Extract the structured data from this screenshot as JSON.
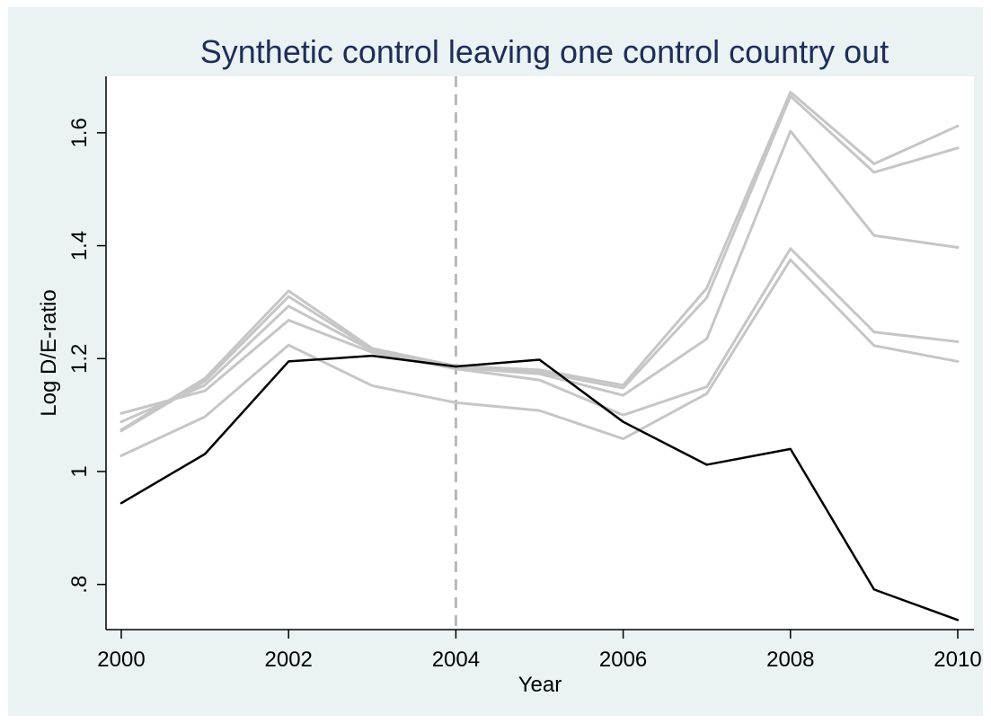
{
  "chart_data": {
    "type": "line",
    "title": "Synthetic control leaving one control country out",
    "xlabel": "Year",
    "ylabel": "Log D/E-ratio",
    "x": [
      2000,
      2001,
      2002,
      2003,
      2004,
      2005,
      2006,
      2007,
      2008,
      2009,
      2010
    ],
    "xticks": [
      2000,
      2002,
      2004,
      2006,
      2008,
      2010
    ],
    "xtick_labels": [
      "2000",
      "2002",
      "2004",
      "2006",
      "2008",
      "2010"
    ],
    "yticks": [
      0.8,
      1.0,
      1.2,
      1.4,
      1.6
    ],
    "ytick_labels": [
      ".8",
      "1",
      "1.2",
      "1.4",
      "1.6"
    ],
    "xlim": [
      2000,
      2010
    ],
    "ylim": [
      0.72,
      1.7
    ],
    "grid": "horizontal",
    "vertical_reference_line": 2004,
    "series": [
      {
        "values": [
          1.074,
          1.165,
          1.32,
          1.218,
          1.187,
          1.18,
          1.153,
          1.325,
          1.672,
          1.545,
          1.612
        ]
      },
      {
        "values": [
          1.072,
          1.16,
          1.31,
          1.216,
          1.186,
          1.176,
          1.148,
          1.308,
          1.665,
          1.53,
          1.573
        ]
      },
      {
        "values": [
          1.088,
          1.153,
          1.293,
          1.214,
          1.184,
          1.173,
          1.135,
          1.235,
          1.603,
          1.418,
          1.397
        ]
      },
      {
        "values": [
          1.103,
          1.143,
          1.268,
          1.211,
          1.182,
          1.162,
          1.1,
          1.15,
          1.395,
          1.247,
          1.23
        ]
      },
      {
        "values": [
          1.028,
          1.097,
          1.224,
          1.152,
          1.122,
          1.108,
          1.058,
          1.138,
          1.375,
          1.223,
          1.195
        ]
      },
      {
        "values": [
          0.944,
          1.031,
          1.195,
          1.205,
          1.186,
          1.198,
          1.088,
          1.012,
          1.04,
          0.791,
          0.737
        ]
      }
    ],
    "colors": {
      "control_lines": "#c6c6c6",
      "treated_line": "#000000",
      "reference_line": "#b8b8b8",
      "gridline": "#ffffff",
      "frame_background": "#eaf2f3",
      "plot_background": "#ffffff",
      "title": "#1e2d5a"
    }
  }
}
